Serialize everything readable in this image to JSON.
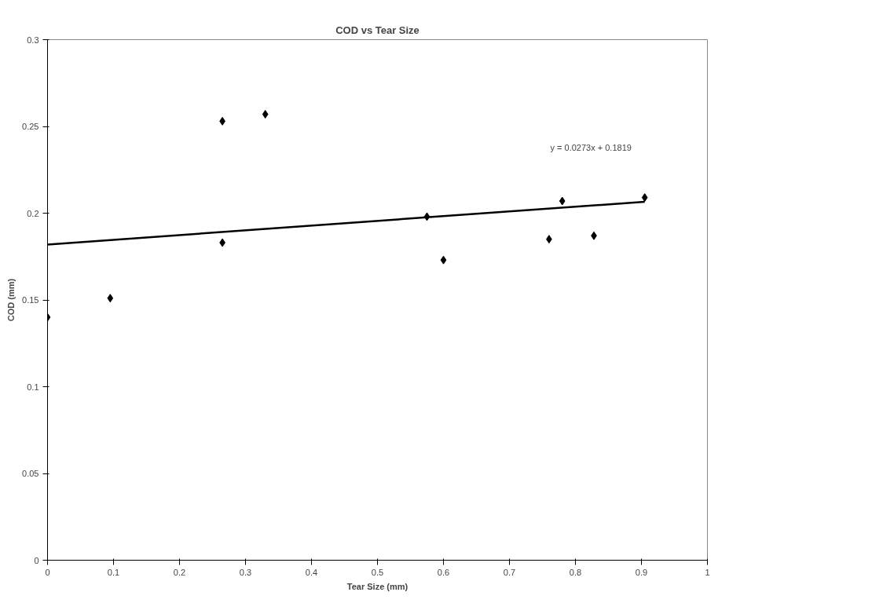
{
  "chart_data": {
    "type": "scatter",
    "title": "COD vs Tear Size",
    "xlabel": "Tear Size (mm)",
    "ylabel": "COD (mm)",
    "xlim": [
      0,
      1
    ],
    "xticks": [
      0,
      0.1,
      0.2,
      0.3,
      0.4,
      0.5,
      0.6,
      0.7,
      0.8,
      0.9,
      1
    ],
    "ylim": [
      0,
      0.3
    ],
    "yticks": [
      0,
      0.05,
      0.1,
      0.15,
      0.2,
      0.25,
      0.3
    ],
    "grid": false,
    "series": [
      {
        "marker": "diamond",
        "color": "#000000",
        "x": [
          0,
          0.095,
          0.265,
          0.265,
          0.33,
          0.575,
          0.6,
          0.76,
          0.78,
          0.828,
          0.905
        ],
        "values": [
          0.14,
          0.151,
          0.253,
          0.183,
          0.257,
          0.198,
          0.173,
          0.185,
          0.207,
          0.187,
          0.209
        ]
      },
      {
        "type": "line",
        "color": "#000000",
        "line_style": "solid",
        "x": [
          0,
          0.905
        ],
        "values": [
          0.1819,
          0.2066
        ]
      }
    ],
    "annotations": [
      "y = 0.0273x + 0.1819"
    ]
  }
}
